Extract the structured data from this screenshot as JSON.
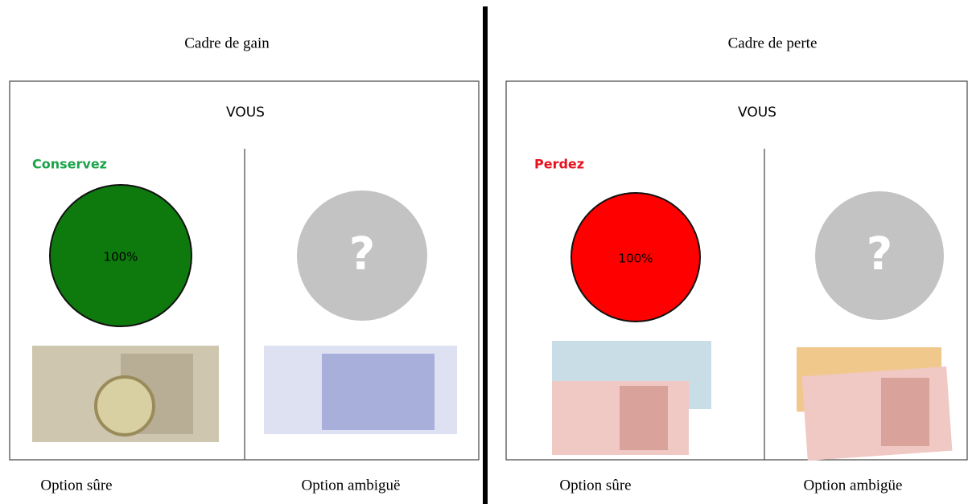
{
  "panels": [
    {
      "title": "Cadre de gain",
      "subject": "VOUS",
      "verb": "Conservez",
      "safe_probability": "100%",
      "ambiguous_symbol": "?",
      "safe_label": "Option sûre",
      "ambiguous_label": "Option ambiguë"
    },
    {
      "title": "Cadre de perte",
      "subject": "VOUS",
      "verb": "Perdez",
      "safe_probability": "100%",
      "ambiguous_symbol": "?",
      "safe_label": "Option sûre",
      "ambiguous_label": "Option ambigüe"
    }
  ]
}
